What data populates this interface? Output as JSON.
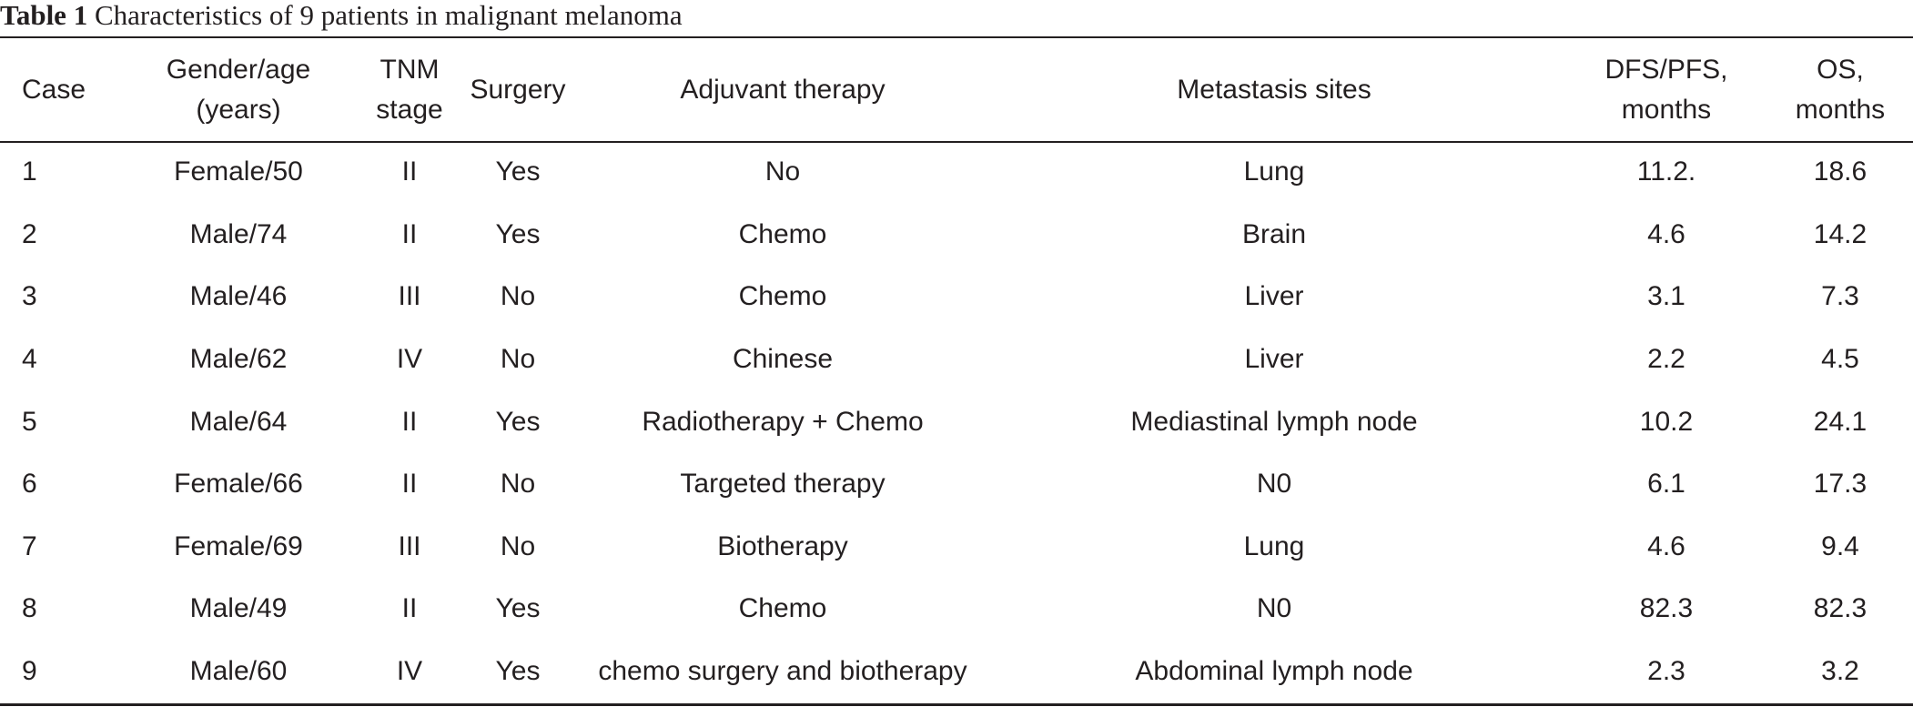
{
  "caption": {
    "label": "Table 1",
    "text": "Characteristics of 9 patients in malignant melanoma"
  },
  "columns": [
    {
      "line1": "Case",
      "line2": ""
    },
    {
      "line1": "Gender/age",
      "line2": "(years)"
    },
    {
      "line1": "TNM",
      "line2": "stage"
    },
    {
      "line1": "Surgery",
      "line2": ""
    },
    {
      "line1": "Adjuvant therapy",
      "line2": ""
    },
    {
      "line1": "Metastasis sites",
      "line2": ""
    },
    {
      "line1": "DFS/PFS,",
      "line2": "months"
    },
    {
      "line1": "OS,",
      "line2": "months"
    }
  ],
  "rows": [
    [
      "1",
      "Female/50",
      "II",
      "Yes",
      "No",
      "Lung",
      "11.2.",
      "18.6"
    ],
    [
      "2",
      "Male/74",
      "II",
      "Yes",
      "Chemo",
      "Brain",
      "4.6",
      "14.2"
    ],
    [
      "3",
      "Male/46",
      "III",
      "No",
      "Chemo",
      "Liver",
      "3.1",
      "7.3"
    ],
    [
      "4",
      "Male/62",
      "IV",
      "No",
      "Chinese",
      "Liver",
      "2.2",
      "4.5"
    ],
    [
      "5",
      "Male/64",
      "II",
      "Yes",
      "Radiotherapy + Chemo",
      "Mediastinal lymph node",
      "10.2",
      "24.1"
    ],
    [
      "6",
      "Female/66",
      "II",
      "No",
      "Targeted therapy",
      "N0",
      "6.1",
      "17.3"
    ],
    [
      "7",
      "Female/69",
      "III",
      "No",
      "Biotherapy",
      "Lung",
      "4.6",
      "9.4"
    ],
    [
      "8",
      "Male/49",
      "II",
      "Yes",
      "Chemo",
      "N0",
      "82.3",
      "82.3"
    ],
    [
      "9",
      "Male/60",
      "IV",
      "Yes",
      "chemo surgery and biotherapy",
      "Abdominal lymph node",
      "2.3",
      "3.2"
    ]
  ]
}
